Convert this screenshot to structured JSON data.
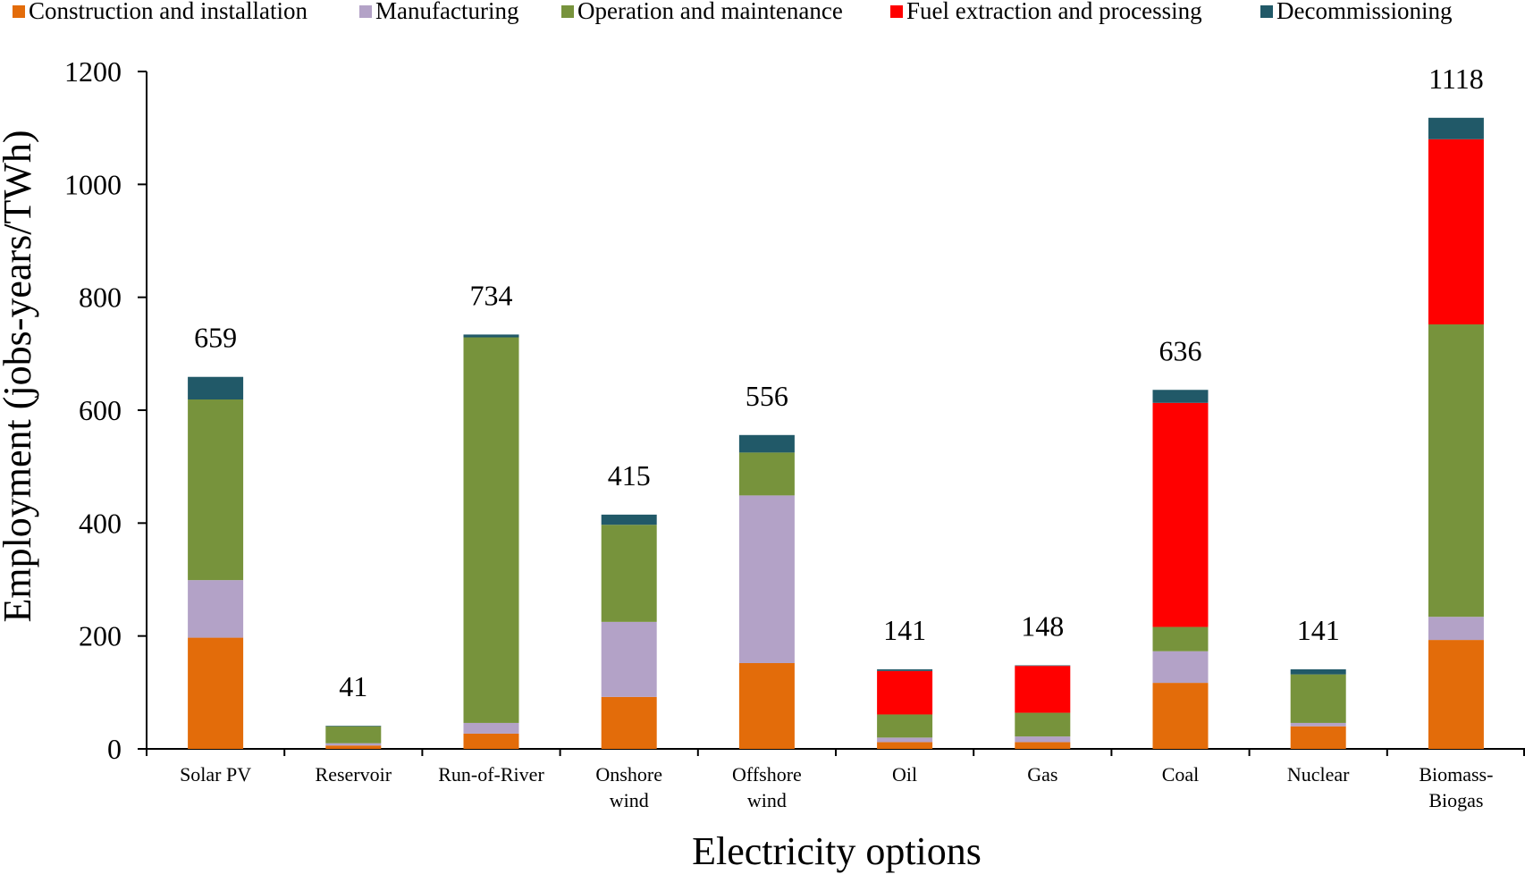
{
  "chart_data": {
    "type": "bar",
    "stacked": true,
    "xlabel": "Electricity options",
    "ylabel": "Employment (jobs-years/TWh)",
    "ylim": [
      0,
      1200
    ],
    "yticks": [
      0,
      200,
      400,
      600,
      800,
      1000,
      1200
    ],
    "grid": false,
    "legend_position": "top",
    "categories": [
      [
        "Solar PV"
      ],
      [
        "Reservoir"
      ],
      [
        "Run-of-River"
      ],
      [
        "Onshore",
        "wind"
      ],
      [
        "Offshore",
        "wind"
      ],
      [
        "Oil"
      ],
      [
        "Gas"
      ],
      [
        "Coal"
      ],
      [
        "Nuclear"
      ],
      [
        "Biomass-",
        "Biogas"
      ]
    ],
    "series": [
      {
        "name": "Construction and installation",
        "color": "#E36C0A",
        "values": [
          197,
          6,
          27,
          92,
          152,
          12,
          12,
          117,
          40,
          193
        ]
      },
      {
        "name": "Manufacturing",
        "color": "#B3A2C7",
        "values": [
          102,
          4,
          19,
          133,
          297,
          8,
          10,
          56,
          6,
          41
        ]
      },
      {
        "name": "Operation and maintenance",
        "color": "#77933C",
        "values": [
          320,
          30,
          683,
          172,
          76,
          41,
          42,
          43,
          86,
          518
        ]
      },
      {
        "name": "Fuel extraction and processing",
        "color": "#FF0000",
        "values": [
          0,
          0,
          0,
          0,
          0,
          77,
          83,
          397,
          0,
          328
        ]
      },
      {
        "name": "Decommissioning",
        "color": "#215968",
        "values": [
          40,
          1,
          5,
          18,
          31,
          3,
          1,
          23,
          9,
          38
        ]
      }
    ],
    "totals": [
      "659",
      "41",
      "734",
      "415",
      "556",
      "141",
      "148",
      "636",
      "141",
      "1118"
    ]
  }
}
